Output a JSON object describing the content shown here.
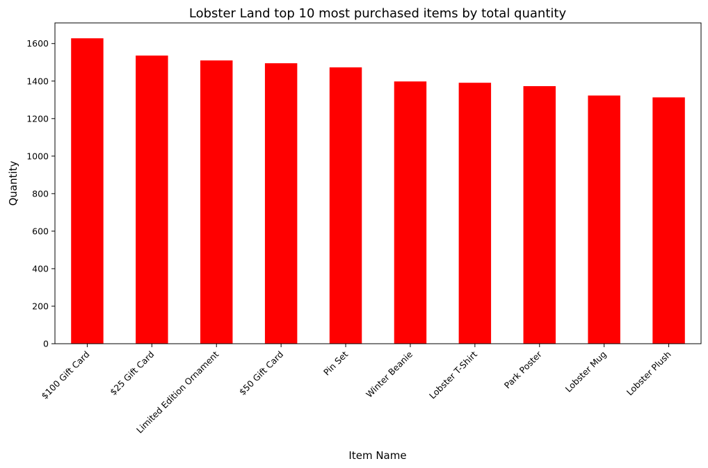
{
  "chart_data": {
    "type": "bar",
    "title": "Lobster Land top 10 most purchased items by total quantity",
    "xlabel": "Item Name",
    "ylabel": "Quantity",
    "categories": [
      "$100 Gift Card",
      "$25 Gift Card",
      "Limited Edition Ornament",
      "$50 Gift Card",
      "Pin Set",
      "Winter Beanie",
      "Lobster T-Shirt",
      "Park Poster",
      "Lobster Mug",
      "Lobster Plush"
    ],
    "values": [
      1628,
      1536,
      1510,
      1495,
      1473,
      1398,
      1391,
      1373,
      1323,
      1313
    ],
    "ylim": [
      0,
      1710
    ],
    "yticks": [
      0,
      200,
      400,
      600,
      800,
      1000,
      1200,
      1400,
      1600
    ],
    "bar_color": "#ff0000",
    "grid": false,
    "legend": "none"
  }
}
